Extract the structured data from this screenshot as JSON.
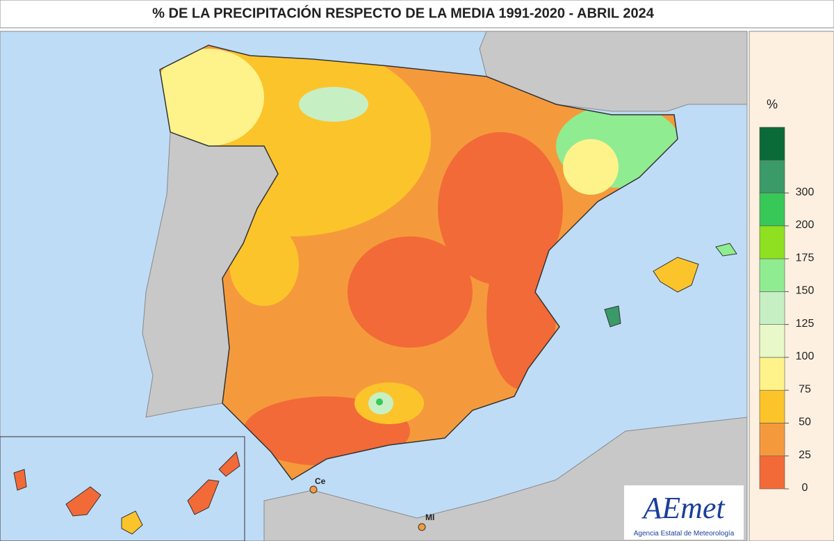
{
  "title": "% DE LA PRECIPITACIÓN RESPECTO DE LA MEDIA 1991-2020 - ABRIL 2024",
  "legend": {
    "unit": "%",
    "ticks": [
      0,
      25,
      50,
      75,
      100,
      125,
      150,
      175,
      200,
      300
    ],
    "colors": [
      "#f26a38",
      "#f59a3c",
      "#fcc42b",
      "#fdf38a",
      "#e9f8c8",
      "#c6f0c4",
      "#90ec90",
      "#8ee020",
      "#38c858",
      "#3a9a68",
      "#0a6a38"
    ]
  },
  "places": [
    "Ce",
    "MI"
  ],
  "logo": {
    "name": "AEmet",
    "subtitle": "Agencia Estatal de Meteorología"
  }
}
